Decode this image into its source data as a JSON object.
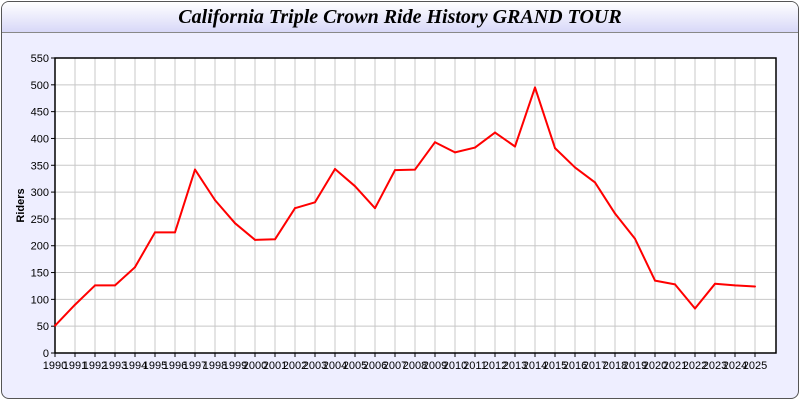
{
  "chart_data": {
    "type": "line",
    "title": "California Triple Crown Ride History GRAND TOUR",
    "xlabel": "",
    "ylabel": "Riders",
    "ylim": [
      0,
      550
    ],
    "yticks": [
      0,
      50,
      100,
      150,
      200,
      250,
      300,
      350,
      400,
      450,
      500,
      550
    ],
    "grid": true,
    "x": [
      1990,
      1991,
      1992,
      1993,
      1994,
      1995,
      1996,
      1997,
      1998,
      1999,
      2000,
      2001,
      2002,
      2003,
      2004,
      2005,
      2006,
      2007,
      2008,
      2009,
      2010,
      2011,
      2012,
      2013,
      2014,
      2015,
      2016,
      2017,
      2018,
      2019,
      2020,
      2021,
      2022,
      2023,
      2024,
      2025
    ],
    "series": [
      {
        "color": "#ff0000",
        "values": [
          51,
          90,
          126,
          126,
          160,
          225,
          225,
          342,
          285,
          242,
          211,
          212,
          270,
          281,
          343,
          311,
          270,
          341,
          342,
          393,
          374,
          383,
          411,
          385,
          495,
          382,
          346,
          318,
          260,
          213,
          135,
          128,
          83,
          129,
          126,
          124
        ]
      }
    ]
  }
}
